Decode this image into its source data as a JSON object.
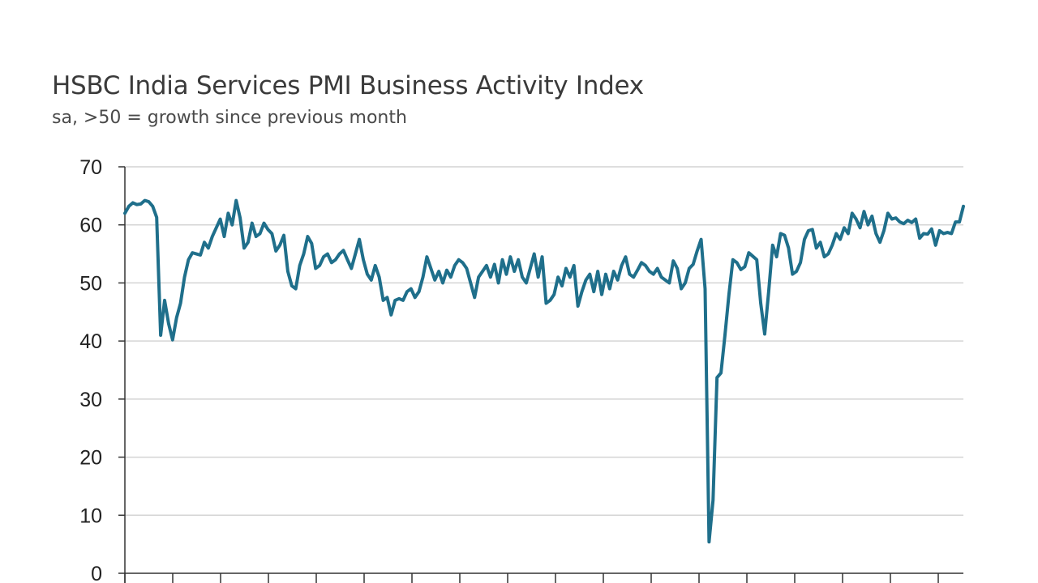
{
  "chart_data": {
    "type": "line",
    "title": "HSBC India Services PMI Business Activity Index",
    "subtitle": "sa, >50 = growth since previous month",
    "xlabel": "",
    "ylabel": "",
    "ylim": [
      0,
      70
    ],
    "yticks": [
      0,
      10,
      20,
      30,
      40,
      50,
      60,
      70
    ],
    "grid": true,
    "line_color": "#1f6f8b",
    "grid_color": "#d4d4d4",
    "series": [
      {
        "values": [
          62.0,
          63.2,
          63.8,
          63.5,
          63.6,
          64.2,
          64.0,
          63.2,
          61.3,
          41.0,
          47.0,
          43.0,
          40.2,
          44.0,
          46.5,
          51.0,
          54.0,
          55.2,
          55.0,
          54.8,
          57.0,
          56.0,
          58.0,
          59.5,
          61.0,
          58.0,
          62.0,
          60.0,
          64.2,
          61.2,
          56.0,
          57.0,
          60.3,
          58.0,
          58.5,
          60.3,
          59.2,
          58.5,
          55.5,
          56.5,
          58.2,
          52.0,
          49.5,
          49.0,
          53.0,
          55.0,
          58.0,
          56.8,
          52.5,
          53.0,
          54.5,
          55.0,
          53.5,
          54.0,
          55.0,
          55.6,
          54.0,
          52.5,
          55.0,
          57.5,
          54.0,
          51.5,
          50.5,
          53.0,
          51.0,
          47.0,
          47.5,
          44.5,
          47.0,
          47.3,
          47.0,
          48.5,
          49.0,
          47.5,
          48.5,
          51.0,
          54.5,
          52.5,
          50.5,
          52.0,
          50.0,
          52.2,
          51.0,
          53.0,
          54.0,
          53.5,
          52.5,
          50.0,
          47.5,
          51.0,
          52.0,
          53.0,
          51.0,
          53.2,
          50.0,
          54.0,
          51.5,
          54.5,
          52.0,
          54.0,
          51.0,
          50.0,
          52.5,
          55.0,
          51.0,
          54.5,
          46.5,
          47.0,
          48.0,
          51.0,
          49.5,
          52.5,
          51.0,
          53.0,
          46.0,
          48.5,
          50.5,
          51.5,
          48.5,
          52.0,
          48.0,
          51.5,
          49.0,
          52.0,
          50.5,
          53.0,
          54.5,
          51.5,
          51.0,
          52.2,
          53.5,
          53.0,
          52.0,
          51.5,
          52.5,
          51.0,
          50.5,
          50.0,
          53.8,
          52.5,
          49.0,
          50.0,
          52.5,
          53.2,
          55.5,
          57.5,
          49.0,
          5.4,
          12.6,
          33.7,
          34.5,
          41.0,
          48.0,
          54.0,
          53.5,
          52.3,
          52.8,
          55.2,
          54.6,
          54.0,
          46.5,
          41.2,
          48.5,
          56.5,
          54.5,
          58.5,
          58.2,
          56.0,
          51.5,
          52.0,
          53.5,
          57.5,
          59.0,
          59.2,
          56.0,
          57.0,
          54.5,
          55.0,
          56.5,
          58.5,
          57.5,
          59.5,
          58.5,
          62.0,
          61.0,
          59.5,
          62.3,
          60.0,
          61.5,
          58.5,
          57.0,
          59.0,
          62.0,
          61.0,
          61.2,
          60.5,
          60.2,
          60.8,
          60.4,
          61.0,
          57.7,
          58.5,
          58.4,
          59.3,
          56.5,
          59.0,
          58.5,
          58.7,
          58.5,
          60.5,
          60.5,
          63.2
        ]
      }
    ]
  }
}
